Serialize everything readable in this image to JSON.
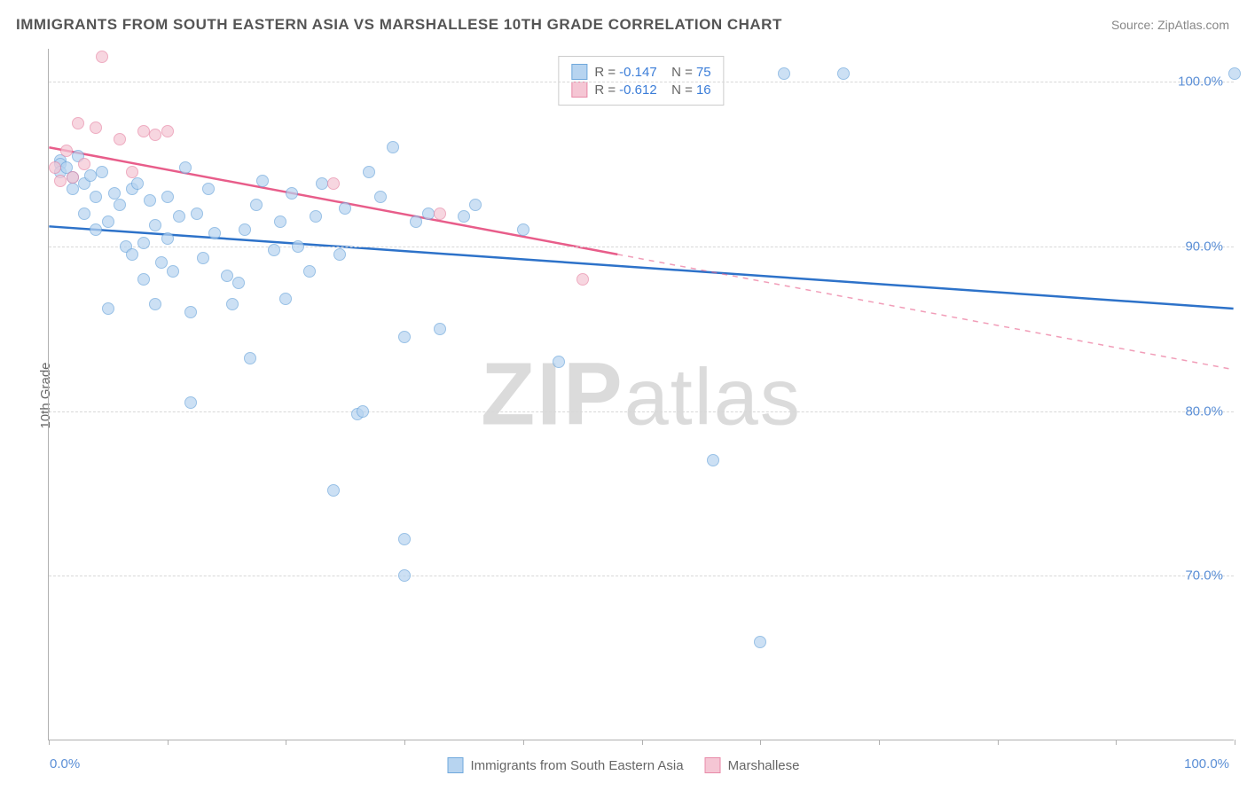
{
  "title": "IMMIGRANTS FROM SOUTH EASTERN ASIA VS MARSHALLESE 10TH GRADE CORRELATION CHART",
  "source": "Source: ZipAtlas.com",
  "watermark": "ZIPatlas",
  "ylabel": "10th Grade",
  "chart": {
    "type": "scatter",
    "background_color": "#ffffff",
    "grid_color": "#d8d8d8",
    "axis_color": "#b0b0b0",
    "xlim": [
      0,
      100
    ],
    "ylim": [
      60,
      102
    ],
    "ytick_values": [
      70,
      80,
      90,
      100
    ],
    "ytick_labels": [
      "70.0%",
      "80.0%",
      "90.0%",
      "100.0%"
    ],
    "xtick_values": [
      0,
      10,
      20,
      30,
      40,
      50,
      60,
      70,
      80,
      90,
      100
    ],
    "xaxis_label_left": "0.0%",
    "xaxis_label_right": "100.0%",
    "tick_label_color": "#5b8fd6",
    "tick_fontsize": 15,
    "label_fontsize": 15,
    "title_fontsize": 17,
    "title_color": "#555555",
    "point_radius": 7,
    "point_opacity": 0.7,
    "series": [
      {
        "name": "Immigrants from South Eastern Asia",
        "fill_color": "#b7d4f0",
        "stroke_color": "#6fa8dc",
        "line_color": "#2d72c9",
        "r_value": "-0.147",
        "n_value": "75",
        "trend_solid": {
          "x1": 0,
          "y1": 91.2,
          "x2": 100,
          "y2": 86.2
        },
        "points": [
          [
            1,
            95.2
          ],
          [
            1,
            95.0
          ],
          [
            1,
            94.5
          ],
          [
            1.5,
            94.8
          ],
          [
            2,
            94.2
          ],
          [
            2,
            93.5
          ],
          [
            2.5,
            95.5
          ],
          [
            3,
            93.8
          ],
          [
            3,
            92.0
          ],
          [
            3.5,
            94.3
          ],
          [
            4,
            91.0
          ],
          [
            4,
            93.0
          ],
          [
            4.5,
            94.5
          ],
          [
            5,
            86.2
          ],
          [
            5,
            91.5
          ],
          [
            5.5,
            93.2
          ],
          [
            6,
            92.5
          ],
          [
            6.5,
            90.0
          ],
          [
            7,
            93.5
          ],
          [
            7,
            89.5
          ],
          [
            7.5,
            93.8
          ],
          [
            8,
            90.2
          ],
          [
            8,
            88.0
          ],
          [
            8.5,
            92.8
          ],
          [
            9,
            91.3
          ],
          [
            9,
            86.5
          ],
          [
            9.5,
            89.0
          ],
          [
            10,
            93.0
          ],
          [
            10,
            90.5
          ],
          [
            10.5,
            88.5
          ],
          [
            11,
            91.8
          ],
          [
            11.5,
            94.8
          ],
          [
            12,
            80.5
          ],
          [
            12,
            86.0
          ],
          [
            12.5,
            92.0
          ],
          [
            13,
            89.3
          ],
          [
            13.5,
            93.5
          ],
          [
            14,
            90.8
          ],
          [
            15,
            88.2
          ],
          [
            15.5,
            86.5
          ],
          [
            16,
            87.8
          ],
          [
            16.5,
            91.0
          ],
          [
            17,
            83.2
          ],
          [
            17.5,
            92.5
          ],
          [
            18,
            94.0
          ],
          [
            19,
            89.8
          ],
          [
            19.5,
            91.5
          ],
          [
            20,
            86.8
          ],
          [
            20.5,
            93.2
          ],
          [
            21,
            90.0
          ],
          [
            22,
            88.5
          ],
          [
            22.5,
            91.8
          ],
          [
            23,
            93.8
          ],
          [
            24,
            75.2
          ],
          [
            24.5,
            89.5
          ],
          [
            25,
            92.3
          ],
          [
            26,
            79.8
          ],
          [
            26.5,
            80.0
          ],
          [
            27,
            94.5
          ],
          [
            28,
            93.0
          ],
          [
            29,
            96.0
          ],
          [
            30,
            84.5
          ],
          [
            30,
            70.0
          ],
          [
            30,
            72.2
          ],
          [
            31,
            91.5
          ],
          [
            32,
            92.0
          ],
          [
            33,
            85.0
          ],
          [
            35,
            91.8
          ],
          [
            36,
            92.5
          ],
          [
            40,
            91.0
          ],
          [
            43,
            83.0
          ],
          [
            56,
            77.0
          ],
          [
            60,
            66.0
          ],
          [
            62,
            100.5
          ],
          [
            67,
            100.5
          ],
          [
            100,
            100.5
          ]
        ]
      },
      {
        "name": "Marshallese",
        "fill_color": "#f5c6d4",
        "stroke_color": "#e88aa8",
        "line_color": "#e85d8a",
        "r_value": "-0.612",
        "n_value": "16",
        "trend_solid": {
          "x1": 0,
          "y1": 96.0,
          "x2": 48,
          "y2": 89.5
        },
        "trend_dashed": {
          "x1": 48,
          "y1": 89.5,
          "x2": 100,
          "y2": 82.5
        },
        "points": [
          [
            0.5,
            94.8
          ],
          [
            1,
            94.0
          ],
          [
            1.5,
            95.8
          ],
          [
            2,
            94.2
          ],
          [
            2.5,
            97.5
          ],
          [
            3,
            95.0
          ],
          [
            4,
            97.2
          ],
          [
            4.5,
            101.5
          ],
          [
            6,
            96.5
          ],
          [
            7,
            94.5
          ],
          [
            8,
            97.0
          ],
          [
            9,
            96.8
          ],
          [
            10,
            97.0
          ],
          [
            24,
            93.8
          ],
          [
            33,
            92.0
          ],
          [
            45,
            88.0
          ]
        ]
      }
    ]
  },
  "legend_bottom": [
    {
      "label": "Immigrants from South Eastern Asia",
      "fill": "#b7d4f0",
      "stroke": "#6fa8dc"
    },
    {
      "label": "Marshallese",
      "fill": "#f5c6d4",
      "stroke": "#e88aa8"
    }
  ]
}
